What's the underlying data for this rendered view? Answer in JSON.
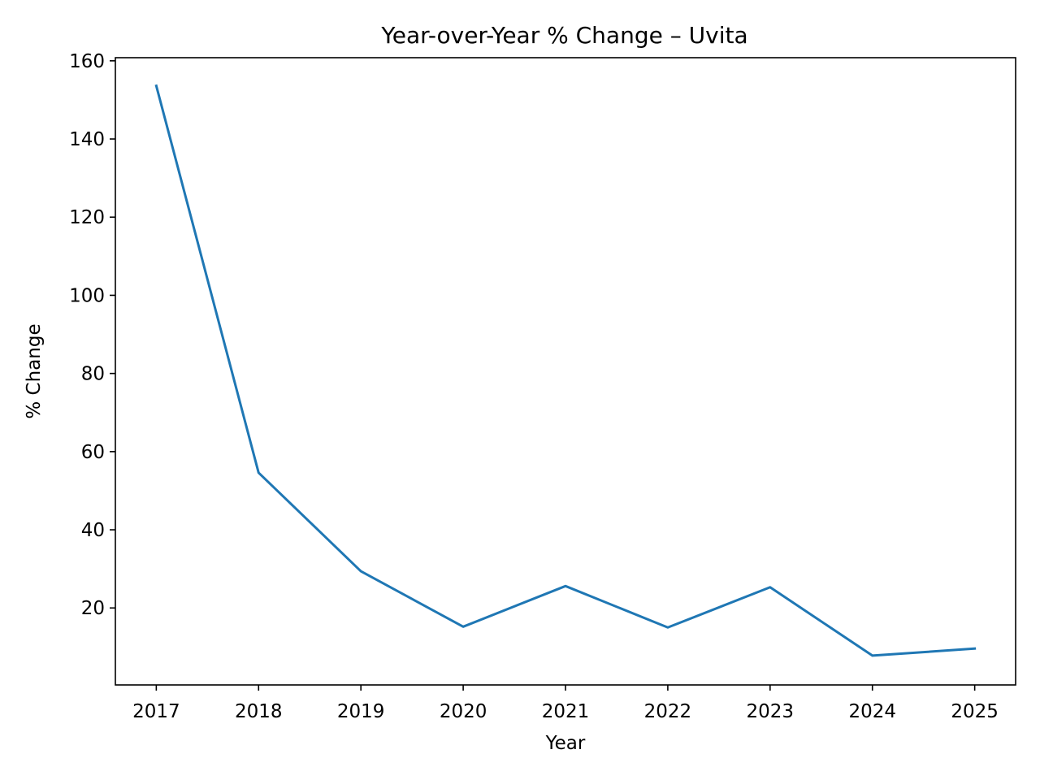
{
  "chart_data": {
    "type": "line",
    "title": "Year-over-Year % Change – Uvita",
    "xlabel": "Year",
    "ylabel": "% Change",
    "x": [
      2017,
      2018,
      2019,
      2020,
      2021,
      2022,
      2023,
      2024,
      2025
    ],
    "x_tick_labels": [
      "2017",
      "2018",
      "2019",
      "2020",
      "2021",
      "2022",
      "2023",
      "2024",
      "2025"
    ],
    "y_ticks": [
      20,
      40,
      60,
      80,
      100,
      120,
      140,
      160
    ],
    "y_tick_labels": [
      "20",
      "40",
      "60",
      "80",
      "100",
      "120",
      "140",
      "160"
    ],
    "xlim": [
      2016.6,
      2025.4
    ],
    "ylim": [
      0.3,
      160.8
    ],
    "grid": false,
    "series": [
      {
        "color": "#1f77b4",
        "values": [
          153.6,
          54.6,
          29.4,
          15.2,
          25.6,
          15.0,
          25.3,
          7.8,
          9.6
        ]
      }
    ]
  }
}
